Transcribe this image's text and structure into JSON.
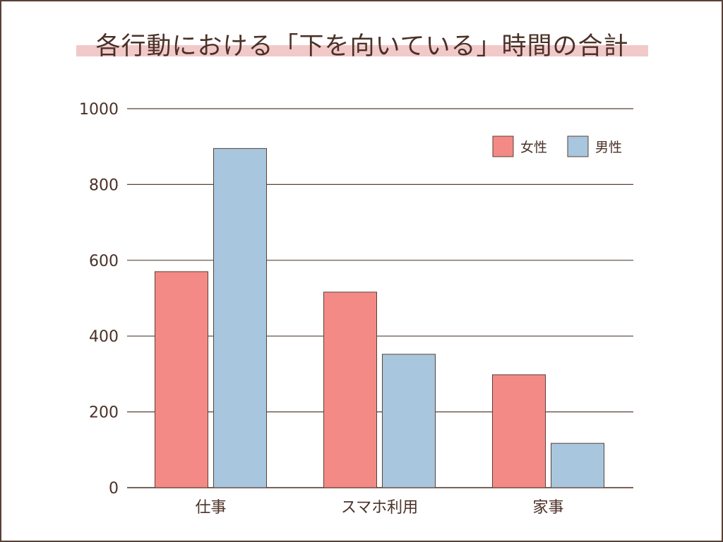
{
  "chart_data": {
    "type": "bar",
    "title": "各行動における「下を向いている」時間の合計",
    "categories": [
      "仕事",
      "スマホ利用",
      "家事"
    ],
    "series": [
      {
        "name": "女性",
        "color": "#f48a86",
        "values": [
          570,
          516,
          298
        ]
      },
      {
        "name": "男性",
        "color": "#a8c6de",
        "values": [
          895,
          352,
          117
        ]
      }
    ],
    "yticks": [
      "0",
      "200",
      "400",
      "600",
      "800",
      "1000"
    ],
    "ylim": [
      0,
      1000
    ],
    "grid": true,
    "legend": "top-right",
    "colors": {
      "axis": "#5a4037",
      "text": "#4b3128",
      "highlight": "#f2c9c9"
    }
  }
}
